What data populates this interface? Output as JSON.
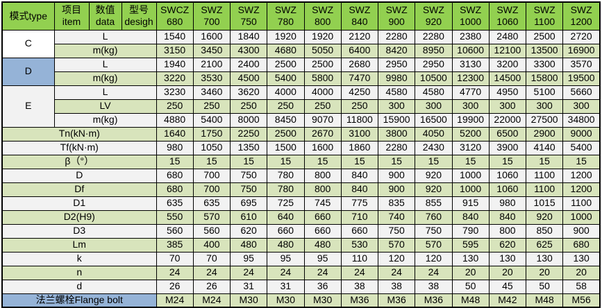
{
  "colors": {
    "header_green": "#92D050",
    "row_green": "#D8E4BC",
    "row_gray": "#F2F2F2",
    "mode_c_bg": "#FFFFFF",
    "mode_d_bg": "#95B3D7",
    "mode_e_bg": "#F2F2F2",
    "flange_label_bg": "#95B3D7",
    "border": "#000000"
  },
  "header": {
    "mode_type": "模式type",
    "item_zh": "项目",
    "item_en": "item",
    "data_zh": "数值",
    "data_en": "data",
    "design_zh": "型号",
    "design_en": "desigh",
    "models": [
      {
        "series": "SWCZ",
        "size": "680"
      },
      {
        "series": "SWZ",
        "size": "700"
      },
      {
        "series": "SWZ",
        "size": "750"
      },
      {
        "series": "SWZ",
        "size": "780"
      },
      {
        "series": "SWZ",
        "size": "800"
      },
      {
        "series": "SWZ",
        "size": "840"
      },
      {
        "series": "SWZ",
        "size": "900"
      },
      {
        "series": "SWZ",
        "size": "920"
      },
      {
        "series": "SWZ",
        "size": "1000"
      },
      {
        "series": "SWZ",
        "size": "1060"
      },
      {
        "series": "SWZ",
        "size": "1100"
      },
      {
        "series": "SWZ",
        "size": "1200"
      }
    ]
  },
  "mode_sections": [
    {
      "mode": "C",
      "rows": [
        {
          "label": "L",
          "values": [
            1540,
            1600,
            1840,
            1920,
            1920,
            2120,
            2280,
            2280,
            2380,
            2480,
            2500,
            2720
          ]
        },
        {
          "label": "m(kg)",
          "values": [
            3150,
            3450,
            4300,
            4680,
            5050,
            6400,
            8420,
            8950,
            10600,
            12100,
            13500,
            16900
          ]
        }
      ]
    },
    {
      "mode": "D",
      "rows": [
        {
          "label": "L",
          "values": [
            1940,
            2100,
            2400,
            2500,
            2500,
            2680,
            2950,
            2950,
            3130,
            3200,
            3300,
            3570
          ]
        },
        {
          "label": "m(kg)",
          "values": [
            3220,
            3530,
            4500,
            5400,
            5800,
            7470,
            9980,
            10500,
            12300,
            14500,
            15800,
            19500
          ]
        }
      ]
    },
    {
      "mode": "E",
      "rows": [
        {
          "label": "L",
          "values": [
            3230,
            3460,
            3620,
            4000,
            4000,
            4250,
            4580,
            4580,
            4770,
            4950,
            5100,
            5660
          ]
        },
        {
          "label": "LV",
          "values": [
            250,
            250,
            250,
            250,
            250,
            250,
            300,
            300,
            300,
            300,
            300,
            300
          ]
        },
        {
          "label": "m(kg)",
          "values": [
            4880,
            5400,
            8000,
            8450,
            9070,
            11800,
            15900,
            16500,
            19900,
            22000,
            27500,
            34800
          ]
        }
      ]
    }
  ],
  "param_rows": [
    {
      "label": "Tn(kN·m)",
      "values": [
        1640,
        1750,
        2250,
        2500,
        2670,
        3100,
        3800,
        4050,
        5200,
        6500,
        2900,
        9000
      ]
    },
    {
      "label": "Tf(kN·m)",
      "values": [
        980,
        1050,
        1350,
        1500,
        1600,
        1860,
        2280,
        2430,
        3120,
        3900,
        4140,
        5400
      ]
    },
    {
      "label": "β（°）",
      "values": [
        15,
        15,
        15,
        15,
        15,
        15,
        15,
        15,
        15,
        15,
        15,
        15
      ]
    },
    {
      "label": "D",
      "values": [
        680,
        700,
        750,
        780,
        800,
        840,
        900,
        920,
        1000,
        1060,
        1100,
        1200
      ]
    },
    {
      "label": "Df",
      "values": [
        680,
        700,
        750,
        780,
        800,
        840,
        900,
        920,
        1000,
        1060,
        1100,
        1200
      ]
    },
    {
      "label": "D1",
      "values": [
        635,
        635,
        695,
        725,
        745,
        775,
        835,
        855,
        915,
        980,
        1015,
        1100
      ]
    },
    {
      "label": "D2(H9)",
      "values": [
        550,
        570,
        610,
        640,
        660,
        710,
        740,
        760,
        840,
        840,
        920,
        1000
      ]
    },
    {
      "label": "D3",
      "values": [
        560,
        560,
        620,
        660,
        660,
        660,
        750,
        750,
        790,
        800,
        850,
        900
      ]
    },
    {
      "label": "Lm",
      "values": [
        385,
        400,
        480,
        480,
        480,
        530,
        570,
        570,
        595,
        620,
        625,
        680
      ]
    },
    {
      "label": "k",
      "values": [
        70,
        70,
        95,
        95,
        95,
        110,
        120,
        120,
        130,
        130,
        130,
        130
      ]
    },
    {
      "label": "n",
      "values": [
        24,
        24,
        24,
        24,
        24,
        24,
        24,
        24,
        20,
        20,
        20,
        20
      ]
    },
    {
      "label": "d",
      "values": [
        26,
        26,
        31,
        31,
        36,
        38,
        38,
        38,
        50,
        45,
        50,
        58
      ]
    }
  ],
  "flange_row": {
    "label": "法兰螺栓Flange bolt",
    "values": [
      "M24",
      "M24",
      "M30",
      "M30",
      "M30",
      "M36",
      "M36",
      "M36",
      "M48",
      "M42",
      "M48",
      "M56"
    ]
  }
}
